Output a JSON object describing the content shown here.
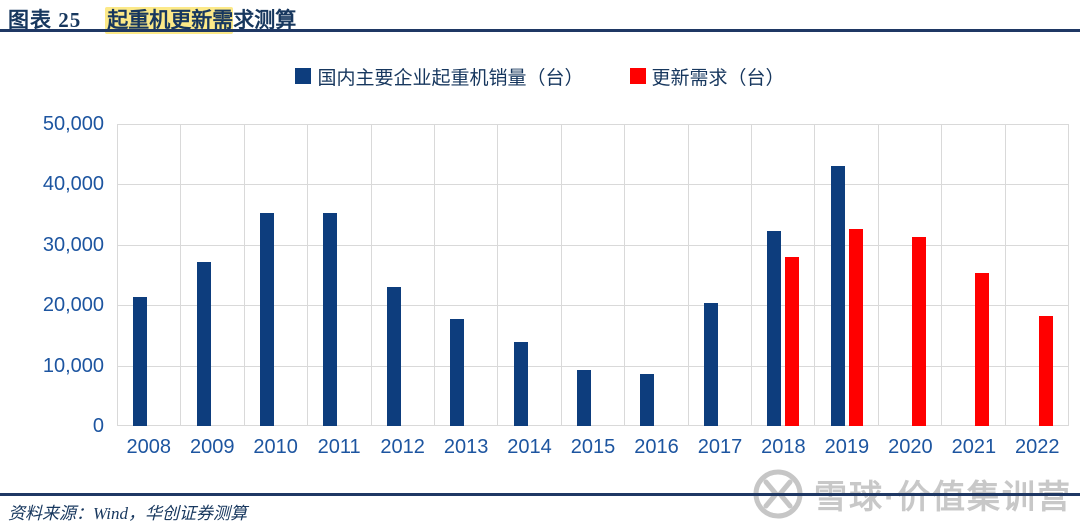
{
  "header": {
    "title_prefix": "图表 25",
    "title_highlighted": "起重机更新需",
    "title_rest": "求测算",
    "highlight_color": "#fce988",
    "rule_color": "#1f3864"
  },
  "legend": [
    {
      "label": "国内主要企业起重机销量（台）",
      "color": "#0d3d7d"
    },
    {
      "label": "更新需求（台）",
      "color": "#ff0000"
    }
  ],
  "chart_data": {
    "type": "bar",
    "title": "起重机更新需求测算",
    "xlabel": "",
    "ylabel": "",
    "categories": [
      "2008",
      "2009",
      "2010",
      "2011",
      "2012",
      "2013",
      "2014",
      "2015",
      "2016",
      "2017",
      "2018",
      "2019",
      "2020",
      "2021",
      "2022"
    ],
    "series": [
      {
        "name": "国内主要企业起重机销量（台）",
        "color": "#0d3d7d",
        "values": [
          21300,
          27200,
          35300,
          35300,
          23000,
          17700,
          13900,
          9200,
          8600,
          20300,
          32300,
          43000,
          null,
          null,
          null
        ]
      },
      {
        "name": "更新需求（台）",
        "color": "#ff0000",
        "values": [
          null,
          null,
          null,
          null,
          null,
          null,
          null,
          null,
          null,
          null,
          27900,
          32700,
          31300,
          25400,
          18200
        ]
      }
    ],
    "ylim": [
      0,
      50000
    ],
    "ytick_interval": 10000,
    "yticks": [
      "50,000",
      "40,000",
      "30,000",
      "20,000",
      "10,000",
      "0"
    ],
    "grid": true,
    "gridline_color": "#d9d9d9",
    "axis_text_color": "#1d55a0",
    "legend_position": "top"
  },
  "footer": {
    "source": "资料来源：Wind，华创证券测算",
    "watermark": "雪球·价值集训营"
  }
}
